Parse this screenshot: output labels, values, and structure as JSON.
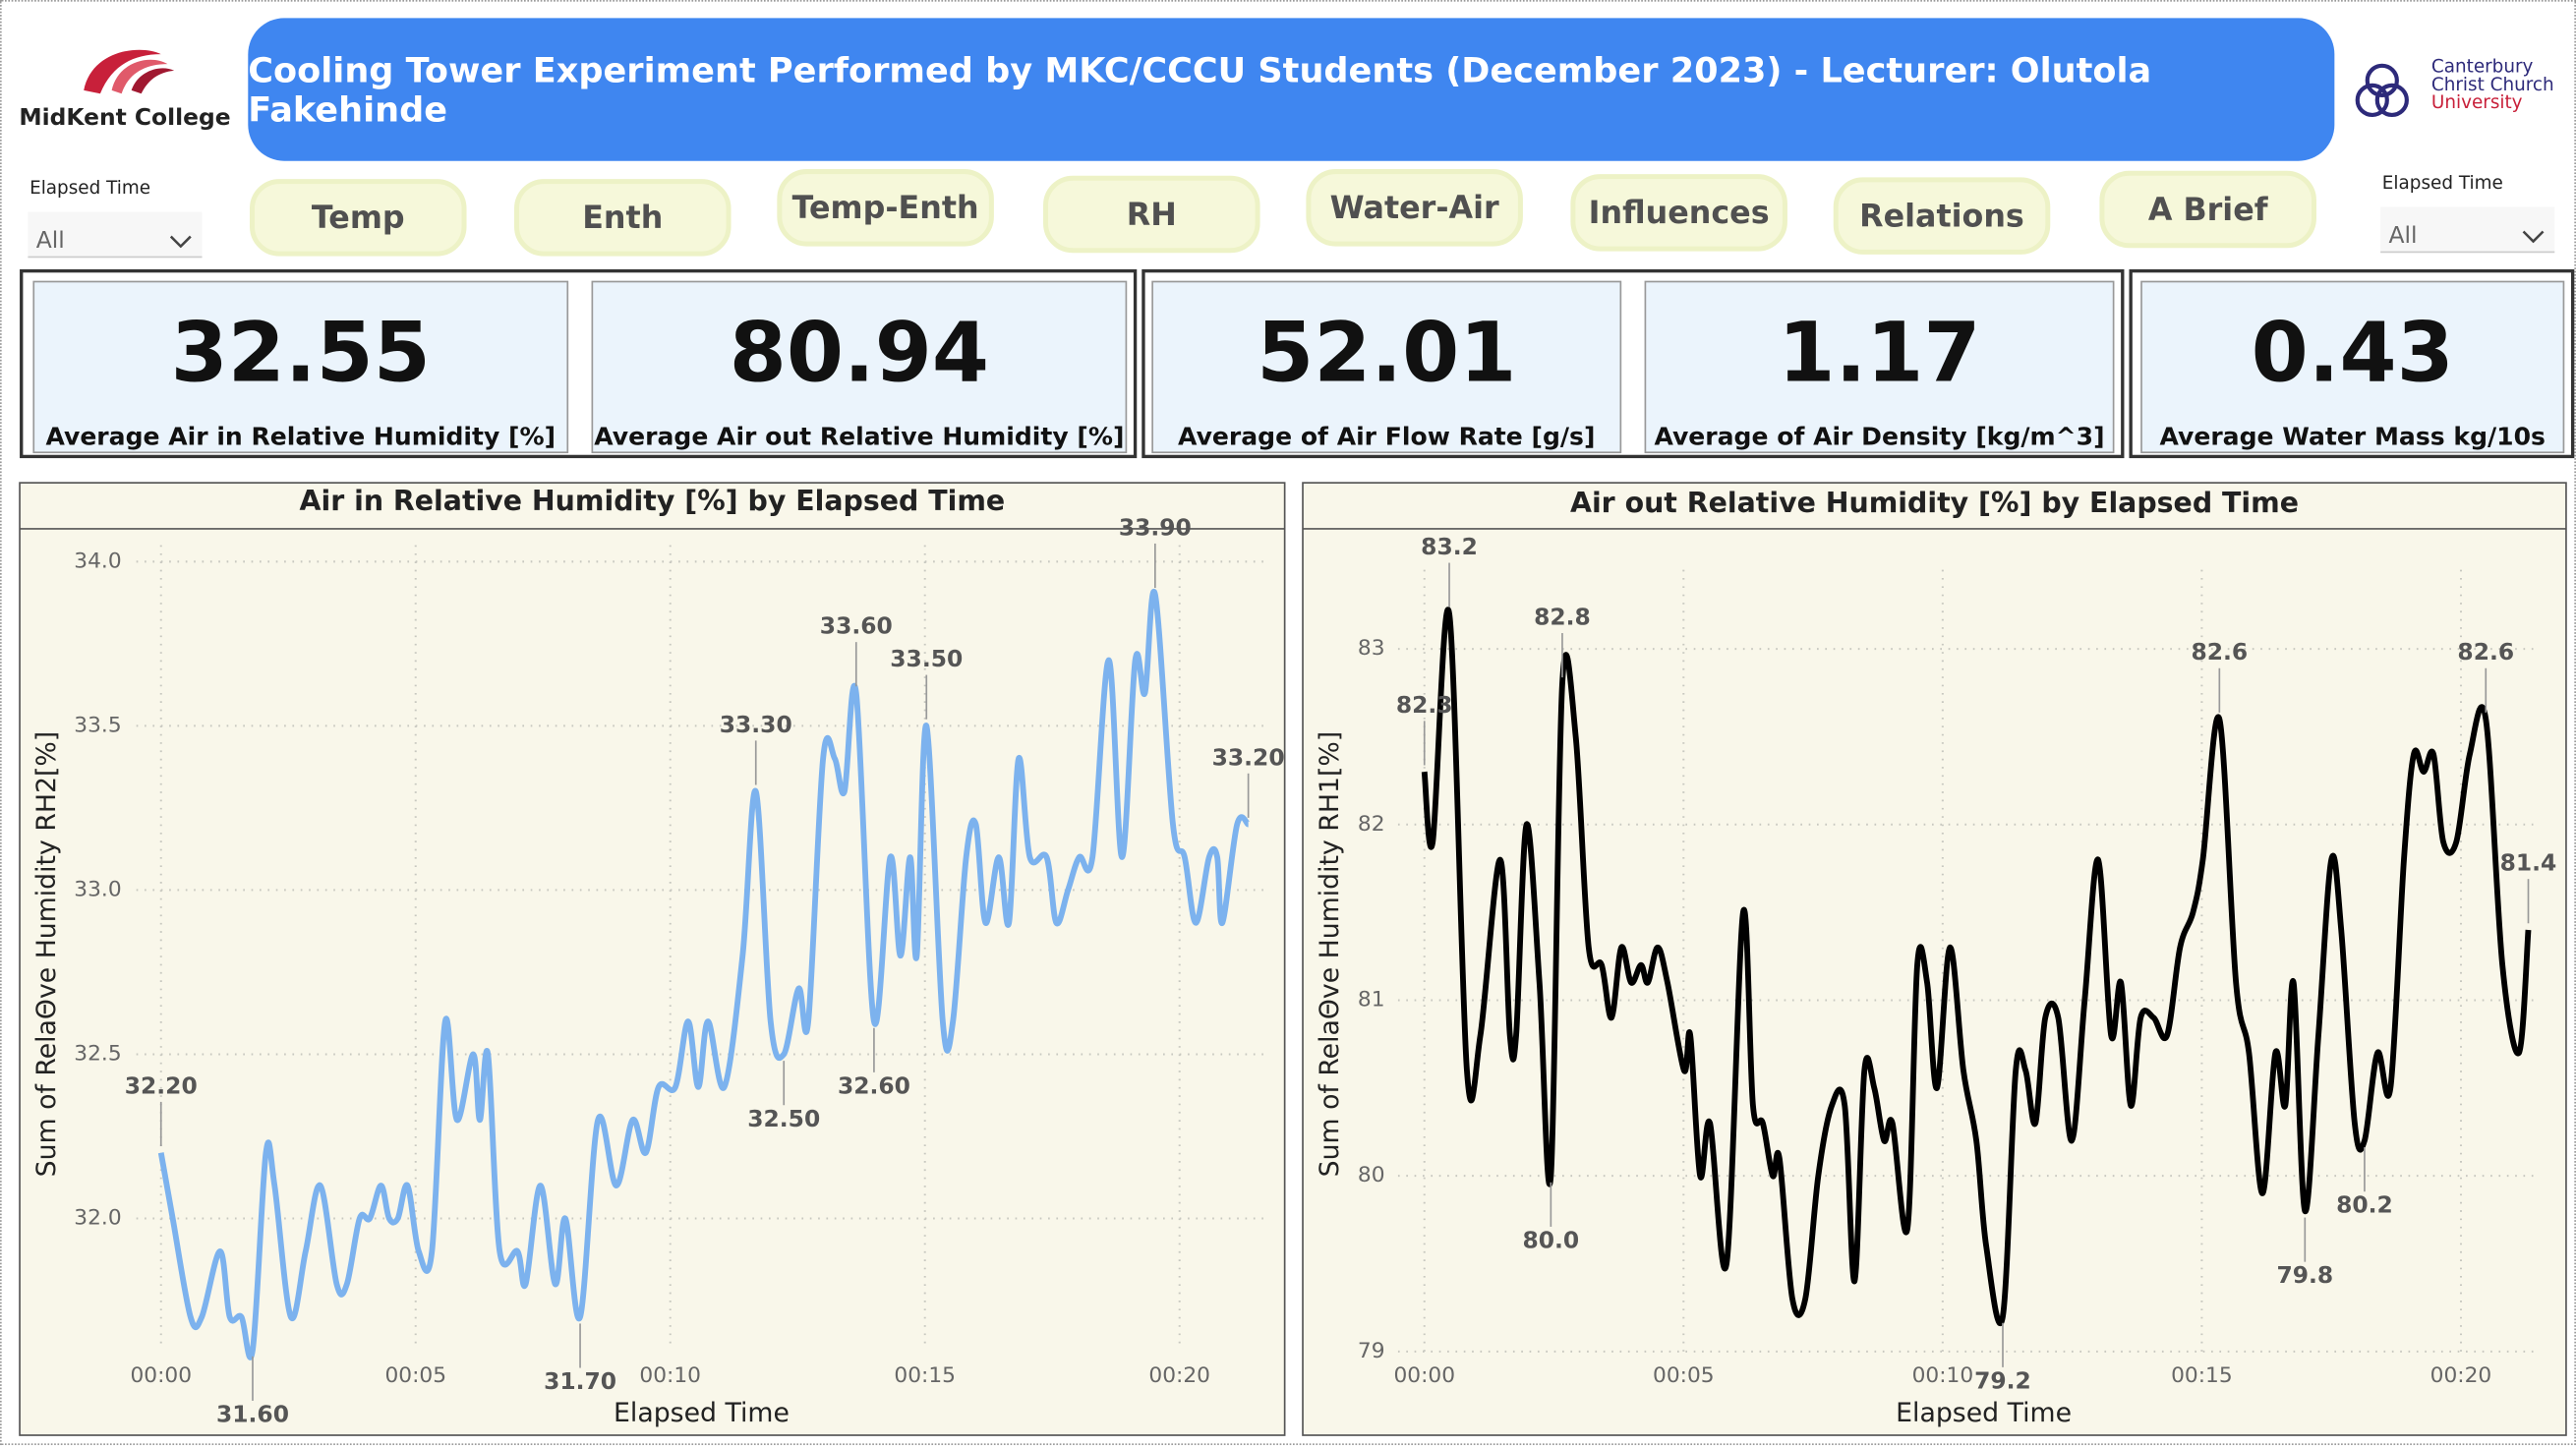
{
  "header": {
    "title": "Cooling Tower Experiment Performed by MKC/CCCU Students (December 2023) - Lecturer: Olutola Fakehinde",
    "left_logo": "MidKent College",
    "right_logo": [
      "Canterbury",
      "Christ Church",
      "University"
    ]
  },
  "slicers": [
    {
      "label": "Elapsed Time",
      "value": "All"
    },
    {
      "label": "Elapsed Time",
      "value": "All"
    }
  ],
  "nav_buttons": [
    "Temp",
    "Enth",
    "Temp-Enth",
    "RH",
    "Water-Air",
    "Influences",
    "Relations",
    "A Brief"
  ],
  "kpis": [
    {
      "value": 32.55,
      "label": "Average Air in Relative Humidity [%]"
    },
    {
      "value": 80.94,
      "label": "Average Air out Relative Humidity [%]"
    },
    {
      "value": 52.01,
      "label": "Average of Air Flow Rate [g/s]"
    },
    {
      "value": 1.17,
      "label": "Average of Air Density [kg/m^3]"
    },
    {
      "value": 0.43,
      "label": "Average Water Mass kg/10s"
    }
  ],
  "chart_data": [
    {
      "type": "line",
      "title": "Air in Relative Humidity [%] by Elapsed Time",
      "x_label": "Elapsed Time",
      "y_label": "Sum of RelaΘve Humidity RH2[%]",
      "color": "#7cb2ee",
      "grid": true,
      "x": [
        0,
        0.23,
        0.58,
        0.8,
        1.16,
        1.35,
        1.58,
        1.8,
        2.06,
        2.23,
        2.55,
        2.84,
        3.13,
        3.45,
        3.65,
        3.9,
        4.1,
        4.32,
        4.48,
        4.65,
        4.84,
        5.06,
        5.32,
        5.58,
        5.81,
        6.13,
        6.26,
        6.42,
        6.65,
        7.0,
        7.16,
        7.45,
        7.74,
        7.94,
        8.23,
        8.58,
        8.94,
        9.26,
        9.52,
        9.77,
        10.1,
        10.35,
        10.55,
        10.74,
        11.06,
        11.42,
        11.68,
        11.97,
        12.23,
        12.52,
        12.71,
        13.0,
        13.23,
        13.42,
        13.65,
        14.0,
        14.32,
        14.52,
        14.71,
        14.84,
        15.03,
        15.35,
        15.55,
        15.81,
        16.0,
        16.19,
        16.45,
        16.65,
        16.84,
        17.06,
        17.39,
        17.58,
        17.81,
        18.03,
        18.29,
        18.61,
        18.87,
        19.13,
        19.32,
        19.52,
        19.87,
        20.1,
        20.32,
        20.58,
        20.74,
        20.84,
        21.13,
        21.35
      ],
      "values": [
        32.2,
        32.0,
        31.7,
        31.7,
        31.9,
        31.7,
        31.7,
        31.6,
        32.2,
        32.1,
        31.7,
        31.9,
        32.1,
        31.8,
        31.8,
        32.0,
        32.0,
        32.1,
        32.0,
        32.0,
        32.1,
        31.9,
        31.9,
        32.6,
        32.3,
        32.5,
        32.3,
        32.5,
        31.9,
        31.9,
        31.8,
        32.1,
        31.8,
        32.0,
        31.7,
        32.3,
        32.1,
        32.3,
        32.2,
        32.4,
        32.4,
        32.6,
        32.4,
        32.6,
        32.4,
        32.8,
        33.3,
        32.6,
        32.5,
        32.7,
        32.6,
        33.4,
        33.4,
        33.3,
        33.6,
        32.6,
        33.1,
        32.8,
        33.1,
        32.8,
        33.5,
        32.6,
        32.6,
        33.1,
        33.2,
        32.9,
        33.1,
        32.9,
        33.4,
        33.1,
        33.1,
        32.9,
        33.0,
        33.1,
        33.1,
        33.7,
        33.1,
        33.7,
        33.6,
        33.9,
        33.2,
        33.1,
        32.9,
        33.1,
        33.1,
        32.9,
        33.2,
        33.2
      ],
      "value_labels": [
        "32.20",
        null,
        null,
        null,
        null,
        null,
        null,
        "31.60",
        null,
        null,
        null,
        null,
        null,
        null,
        null,
        null,
        null,
        null,
        null,
        null,
        null,
        null,
        null,
        null,
        null,
        null,
        null,
        null,
        null,
        null,
        null,
        null,
        null,
        null,
        "31.70",
        null,
        null,
        null,
        null,
        null,
        null,
        null,
        null,
        null,
        null,
        null,
        "33.30",
        null,
        "32.50",
        null,
        null,
        null,
        null,
        null,
        "33.60",
        "32.60",
        null,
        null,
        null,
        null,
        "33.50",
        null,
        null,
        null,
        null,
        null,
        null,
        null,
        null,
        null,
        null,
        null,
        null,
        null,
        null,
        null,
        null,
        null,
        null,
        "33.90",
        null,
        null,
        null,
        null,
        null,
        null,
        null,
        "33.20"
      ],
      "xlim": [
        -1.2,
        21.7
      ],
      "xticks": [
        {
          "value": 0,
          "label": "00:00"
        },
        {
          "value": 5,
          "label": "00:05"
        },
        {
          "value": 10,
          "label": "00:10"
        },
        {
          "value": 15,
          "label": "00:15"
        },
        {
          "value": 20,
          "label": "00:20"
        }
      ],
      "ylim": [
        31.6,
        34.05
      ],
      "yticks": [
        {
          "value": 32,
          "label": "32.0"
        },
        32.5,
        {
          "value": 33,
          "label": "33.0"
        },
        33.5,
        {
          "value": 34,
          "label": "34.0"
        }
      ]
    },
    {
      "type": "line",
      "title": "Air out Relative Humidity [%] by Elapsed Time",
      "x_label": "Elapsed Time",
      "y_label": "Sum of RelaΘve Humidity RH1[%]",
      "color": "#000000",
      "grid": true,
      "x": [
        0,
        0.16,
        0.48,
        0.82,
        1.08,
        1.46,
        1.65,
        1.77,
        1.97,
        2.22,
        2.44,
        2.66,
        2.92,
        3.17,
        3.42,
        3.61,
        3.8,
        3.99,
        4.18,
        4.31,
        4.5,
        4.69,
        5.01,
        5.13,
        5.32,
        5.51,
        5.83,
        6.15,
        6.34,
        6.53,
        6.72,
        6.85,
        7.1,
        7.35,
        7.6,
        7.86,
        8.11,
        8.3,
        8.49,
        8.68,
        8.87,
        9.03,
        9.32,
        9.51,
        9.7,
        9.89,
        10.14,
        10.4,
        10.65,
        10.84,
        11.16,
        11.41,
        11.6,
        11.79,
        11.98,
        12.23,
        12.49,
        12.74,
        13.0,
        13.25,
        13.44,
        13.63,
        13.82,
        14.07,
        14.33,
        14.58,
        14.83,
        15.02,
        15.34,
        15.66,
        15.91,
        16.17,
        16.42,
        16.61,
        16.77,
        16.99,
        17.25,
        17.5,
        17.69,
        17.95,
        18.14,
        18.39,
        18.64,
        18.9,
        19.09,
        19.28,
        19.47,
        19.66,
        19.91,
        20.17,
        20.48,
        20.8,
        21.12,
        21.3
      ],
      "values": [
        82.3,
        81.9,
        83.2,
        80.6,
        80.8,
        81.8,
        80.8,
        80.8,
        82.0,
        81.1,
        80.0,
        82.8,
        82.5,
        81.3,
        81.2,
        80.9,
        81.3,
        81.1,
        81.2,
        81.1,
        81.3,
        81.1,
        80.6,
        80.8,
        80.0,
        80.3,
        79.5,
        81.5,
        80.4,
        80.3,
        80.0,
        80.1,
        79.3,
        79.3,
        80.0,
        80.4,
        80.4,
        79.4,
        80.6,
        80.5,
        80.2,
        80.3,
        79.7,
        81.2,
        81.1,
        80.5,
        81.3,
        80.6,
        80.2,
        79.6,
        79.2,
        80.6,
        80.6,
        80.3,
        80.9,
        80.9,
        80.2,
        81.0,
        81.8,
        80.8,
        81.1,
        80.4,
        80.9,
        80.9,
        80.8,
        81.3,
        81.5,
        81.8,
        82.6,
        81.1,
        80.7,
        79.9,
        80.7,
        80.4,
        81.1,
        79.8,
        80.8,
        81.8,
        81.4,
        80.3,
        80.2,
        80.7,
        80.5,
        81.8,
        82.4,
        82.3,
        82.4,
        81.9,
        81.9,
        82.4,
        82.6,
        81.2,
        80.7,
        81.4
      ],
      "value_labels": [
        "82.3",
        null,
        "83.2",
        null,
        null,
        null,
        null,
        null,
        null,
        null,
        "80.0",
        "82.8",
        null,
        null,
        null,
        null,
        null,
        null,
        null,
        null,
        null,
        null,
        null,
        null,
        null,
        null,
        null,
        null,
        null,
        null,
        null,
        null,
        null,
        null,
        null,
        null,
        null,
        null,
        null,
        null,
        null,
        null,
        null,
        null,
        null,
        null,
        null,
        null,
        null,
        null,
        "79.2",
        null,
        null,
        null,
        null,
        null,
        null,
        null,
        null,
        null,
        null,
        null,
        null,
        null,
        null,
        null,
        null,
        null,
        "82.6",
        null,
        null,
        null,
        null,
        null,
        null,
        "79.8",
        null,
        null,
        null,
        null,
        "80.2",
        null,
        null,
        null,
        null,
        null,
        null,
        null,
        null,
        null,
        "82.6",
        null,
        null,
        "81.4"
      ],
      "xlim": [
        -0.8,
        21.5
      ],
      "xticks": [
        {
          "value": 0,
          "label": "00:00"
        },
        {
          "value": 5,
          "label": "00:05"
        },
        {
          "value": 10,
          "label": "00:10"
        },
        {
          "value": 15,
          "label": "00:15"
        },
        {
          "value": 20,
          "label": "00:20"
        }
      ],
      "ylim": [
        79,
        83.45
      ],
      "yticks": [
        79,
        80,
        81,
        82,
        83
      ]
    }
  ]
}
